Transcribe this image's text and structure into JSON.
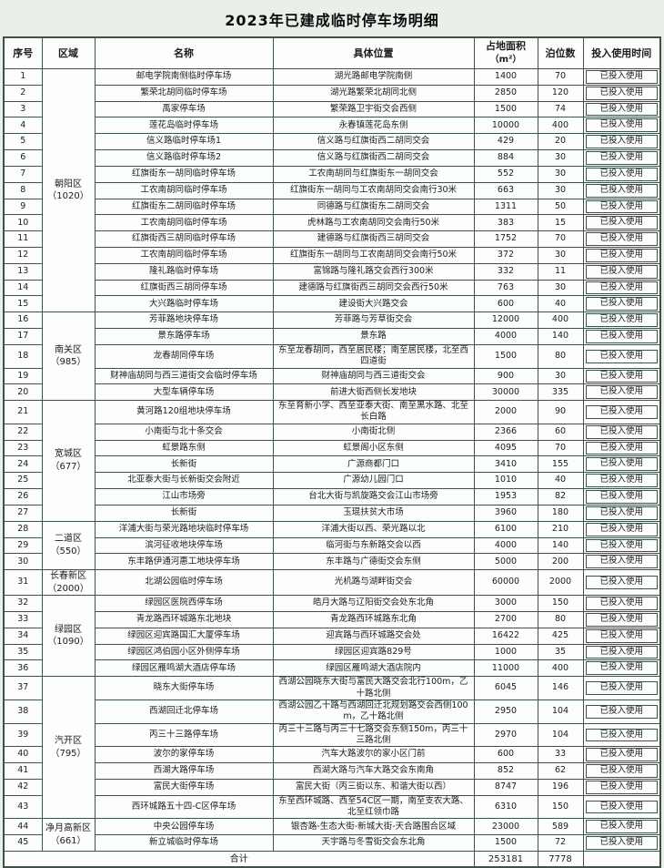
{
  "title": "2023年已建成临时停车场明细",
  "table": {
    "headers": [
      {
        "label": "序号"
      },
      {
        "label": "区域"
      },
      {
        "label": "名称"
      },
      {
        "label": "具体位置"
      },
      {
        "label": "占地面积",
        "sub": "（m²）"
      },
      {
        "label": "泊位数"
      },
      {
        "label": "投入使用时间"
      }
    ],
    "districts": [
      {
        "name": "朝阳区",
        "count": "（1020）",
        "start": 1,
        "span": 15
      },
      {
        "name": "南关区",
        "count": "（985）",
        "start": 16,
        "span": 5
      },
      {
        "name": "宽城区",
        "count": "（677）",
        "start": 21,
        "span": 7
      },
      {
        "name": "二道区",
        "count": "（550）",
        "start": 28,
        "span": 3
      },
      {
        "name": "长春新区",
        "count": "（2000）",
        "start": 31,
        "span": 1
      },
      {
        "name": "绿园区",
        "count": "（1090）",
        "start": 32,
        "span": 5
      },
      {
        "name": "汽开区",
        "count": "（795）",
        "start": 37,
        "span": 7
      },
      {
        "name": "净月高新区",
        "count": "（661）",
        "start": 44,
        "span": 2
      }
    ],
    "rows": [
      {
        "no": 1,
        "name": "邮电学院南侧临时停车场",
        "location": "湖光路邮电学院南侧",
        "area": 1400,
        "spots": 70,
        "status": "已投入使用"
      },
      {
        "no": 2,
        "name": "繁荣北胡同临时停车场",
        "location": "湖光路繁荣北胡同北侧",
        "area": 2850,
        "spots": 120,
        "status": "已投入使用"
      },
      {
        "no": 3,
        "name": "禹家停车场",
        "location": "繁荣路卫宇街交会西侧",
        "area": 1500,
        "spots": 74,
        "status": "已投入使用"
      },
      {
        "no": 4,
        "name": "莲花岛临时停车场",
        "location": "永春镇莲花岛东侧",
        "area": 10000,
        "spots": 400,
        "status": "已投入使用"
      },
      {
        "no": 5,
        "name": "信义路临时停车场1",
        "location": "信义路与红旗街西二胡同交会",
        "area": 429,
        "spots": 20,
        "status": "已投入使用"
      },
      {
        "no": 6,
        "name": "信义路临时停车场2",
        "location": "信义路与红旗街西二胡同交会",
        "area": 884,
        "spots": 30,
        "status": "已投入使用"
      },
      {
        "no": 7,
        "name": "红旗街东一胡同临时停车场",
        "location": "工农南胡同与红旗街东一胡同交会",
        "area": 552,
        "spots": 30,
        "status": "已投入使用"
      },
      {
        "no": 8,
        "name": "工农南胡同临时停车场",
        "location": "红旗街东一胡同与工农南胡同交会南行30米",
        "area": 663,
        "spots": 30,
        "status": "已投入使用"
      },
      {
        "no": 9,
        "name": "红旗街东二胡同临时停车场",
        "location": "同德路与红旗街东二胡同交会",
        "area": 1311,
        "spots": 50,
        "status": "已投入使用"
      },
      {
        "no": 10,
        "name": "工农南胡同临时停车场",
        "location": "虎林路与工农南胡同交会南行50米",
        "area": 383,
        "spots": 15,
        "status": "已投入使用"
      },
      {
        "no": 11,
        "name": "红旗街西三胡同临时停车场",
        "location": "建德路与红旗街西三胡同交会",
        "area": 1752,
        "spots": 70,
        "status": "已投入使用"
      },
      {
        "no": 12,
        "name": "工农南胡同临时停车场",
        "location": "红旗街东一胡同与工农南胡同交会南行50米",
        "area": 372,
        "spots": 30,
        "status": "已投入使用"
      },
      {
        "no": 13,
        "name": "隆礼路临时停车场",
        "location": "富锦路与隆礼路交会西行300米",
        "area": 332,
        "spots": 11,
        "status": "已投入使用"
      },
      {
        "no": 14,
        "name": "红旗街西三胡同停车场",
        "location": "建德路与红旗街西三胡同交会西行50米",
        "area": 763,
        "spots": 30,
        "status": "已投入使用"
      },
      {
        "no": 15,
        "name": "大兴路临时停车场",
        "location": "建设街大兴路交会",
        "area": 600,
        "spots": 40,
        "status": "已投入使用"
      },
      {
        "no": 16,
        "name": "芳菲路地块停车场",
        "location": "芳菲路与芳草街交会",
        "area": 12000,
        "spots": 400,
        "status": "已投入使用"
      },
      {
        "no": 17,
        "name": "景东路停车场",
        "location": "景东路",
        "area": 4000,
        "spots": 140,
        "status": "已投入使用"
      },
      {
        "no": 18,
        "name": "龙春胡同停车场",
        "location": "东至龙春胡同，西至居民楼；南至居民楼，北至西四道街",
        "area": 1500,
        "spots": 80,
        "status": "已投入使用"
      },
      {
        "no": 19,
        "name": "财神庙胡同与西三道街交会临时停车场",
        "location": "财神庙胡同与西三道街交会",
        "area": 900,
        "spots": 30,
        "status": "已投入使用"
      },
      {
        "no": 20,
        "name": "大型车辆停车场",
        "location": "前进大街西侧长发地块",
        "area": 30000,
        "spots": 335,
        "status": "已投入使用"
      },
      {
        "no": 21,
        "name": "黄河路120组地块停车场",
        "location": "东至育新小学、西至亚泰大街、南至黑水路、北至长白路",
        "area": 2000,
        "spots": 90,
        "status": "已投入使用"
      },
      {
        "no": 22,
        "name": "小南街与北十条交会",
        "location": "小南街北侧",
        "area": 2366,
        "spots": 60,
        "status": "已投入使用"
      },
      {
        "no": 23,
        "name": "虹景路东侧",
        "location": "虹景阁小区东侧",
        "area": 4095,
        "spots": 70,
        "status": "已投入使用"
      },
      {
        "no": 24,
        "name": "长新街",
        "location": "广源商都门口",
        "area": 3410,
        "spots": 155,
        "status": "已投入使用"
      },
      {
        "no": 25,
        "name": "北亚泰大街与长新街交会附近",
        "location": "广源幼儿园门口",
        "area": 1010,
        "spots": 40,
        "status": "已投入使用"
      },
      {
        "no": 26,
        "name": "江山市场旁",
        "location": "台北大街与凯旋路交会江山市场旁",
        "area": 1953,
        "spots": 82,
        "status": "已投入使用"
      },
      {
        "no": 27,
        "name": "长新街",
        "location": "玉琨扶贫大市场",
        "area": 3960,
        "spots": 180,
        "status": "已投入使用"
      },
      {
        "no": 28,
        "name": "洋浦大街与荣光路地块临时停车场",
        "location": "洋浦大街以西、荣光路以北",
        "area": 6100,
        "spots": 210,
        "status": "已投入使用"
      },
      {
        "no": 29,
        "name": "滨河征收地块停车场",
        "location": "临河街与东新路交会以西",
        "area": 4000,
        "spots": 140,
        "status": "已投入使用"
      },
      {
        "no": 30,
        "name": "东丰路伊通河惠工地块停车场",
        "location": "东丰路与广德街交会东侧",
        "area": 5000,
        "spots": 200,
        "status": "已投入使用"
      },
      {
        "no": 31,
        "name": "北湖公园临时停车场",
        "location": "光机路与湖畔街交会",
        "area": 60000,
        "spots": 2000,
        "status": "已投入使用"
      },
      {
        "no": 32,
        "name": "绿园区医院西停车场",
        "location": "皓月大路与辽阳街交会处东北角",
        "area": 3000,
        "spots": 150,
        "status": "已投入使用"
      },
      {
        "no": 33,
        "name": "青龙路西环城路东北地块",
        "location": "青龙路西环城路东北角",
        "area": 2700,
        "spots": 80,
        "status": "已投入使用"
      },
      {
        "no": 34,
        "name": "绿园区迎宾路国汇大厦停车场",
        "location": "迎宾路与西环城路交会处",
        "area": 16422,
        "spots": 425,
        "status": "已投入使用"
      },
      {
        "no": 35,
        "name": "绿园区鸿伯园小区外侧停车场",
        "location": "绿园区迎宾路829号",
        "area": 1000,
        "spots": 35,
        "status": "已投入使用"
      },
      {
        "no": 36,
        "name": "绿园区雁鸣湖大酒店停车场",
        "location": "绿园区雁鸣湖大酒店院内",
        "area": 11000,
        "spots": 400,
        "status": "已投入使用"
      },
      {
        "no": 37,
        "name": "晓东大街停车场",
        "location": "西湖公园晓东大街与富民大路交会北行100m，乙十路北侧",
        "area": 6045,
        "spots": 146,
        "status": "已投入使用"
      },
      {
        "no": 38,
        "name": "西湖回迁北停车场",
        "location": "西湖公园乙十路与西湖回迁北规划路交会西侧100m，乙十路北侧",
        "area": 2950,
        "spots": 104,
        "status": "已投入使用"
      },
      {
        "no": 39,
        "name": "丙三十三路停车场",
        "location": "丙三十三路与丙三十七路交会东侧150m，丙三十三路北侧",
        "area": 2970,
        "spots": 104,
        "status": "已投入使用"
      },
      {
        "no": 40,
        "name": "波尔的家停车场",
        "location": "汽车大路波尔的家小区门前",
        "area": 600,
        "spots": 33,
        "status": "已投入使用"
      },
      {
        "no": 41,
        "name": "西湖大路停车场",
        "location": "西湖大路与汽车大路交会东南角",
        "area": 852,
        "spots": 62,
        "status": "已投入使用"
      },
      {
        "no": 42,
        "name": "富民大街停车场",
        "location": "富民大街（丙三街以东、和谐大街以西）",
        "area": 8747,
        "spots": 196,
        "status": "已投入使用"
      },
      {
        "no": 43,
        "name": "西环城路五十四-C区停车场",
        "location": "东至西环城路、西至54C区一期，南至支农大路、北至红领巾路",
        "area": 6310,
        "spots": 150,
        "status": "已投入使用"
      },
      {
        "no": 44,
        "name": "中央公园停车场",
        "location": "银杏路-生态大街-新城大街-天合路围合区域",
        "area": 23000,
        "spots": 589,
        "status": "已投入使用"
      },
      {
        "no": 45,
        "name": "新立城临时停车场",
        "location": "天宇路与冬雪街交会东北角",
        "area": 1500,
        "spots": 72,
        "status": "已投入使用"
      }
    ],
    "total": {
      "label": "合计",
      "area": 253181,
      "spots": 7778
    }
  },
  "colors": {
    "page_background": "#e8f0e9",
    "cell_background": "#fcfdfc",
    "border": "#3f5247",
    "text": "#1c1c1c"
  }
}
